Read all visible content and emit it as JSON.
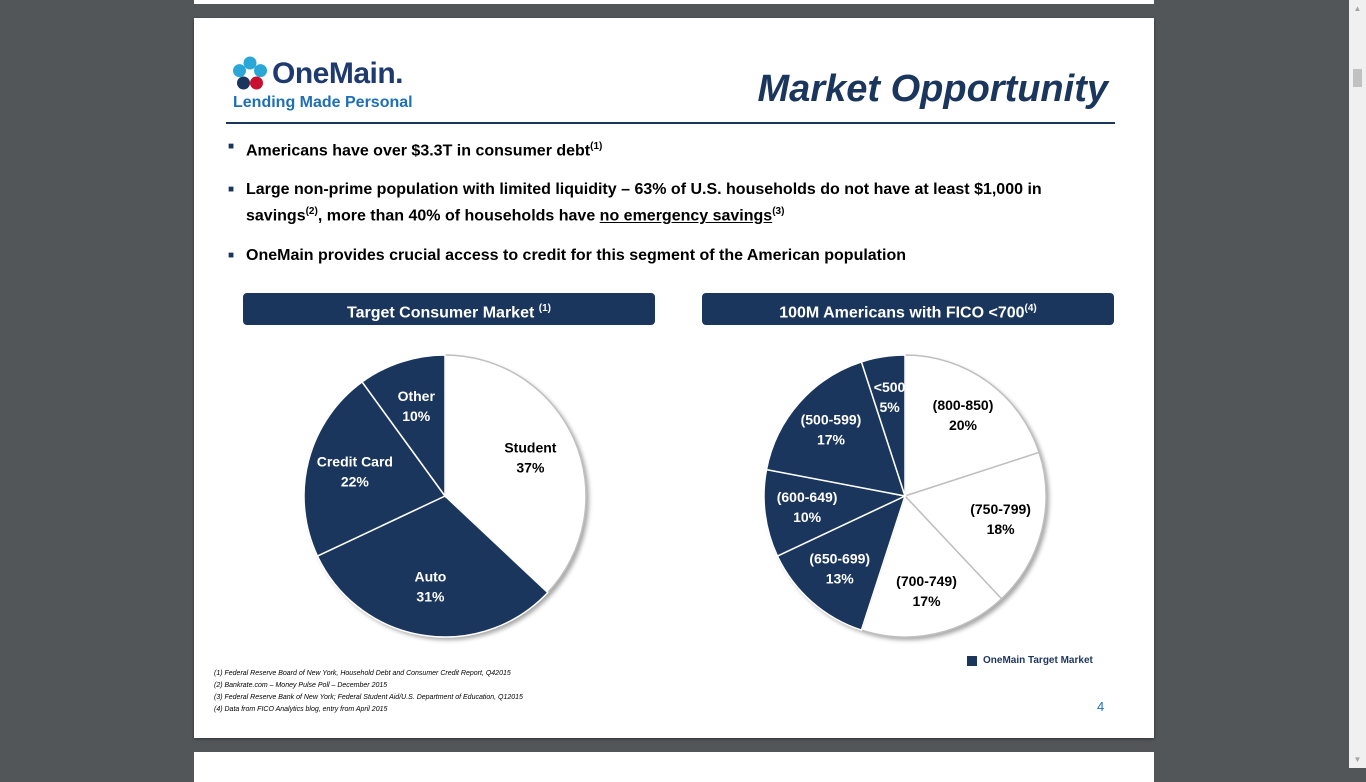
{
  "logo": {
    "name": "OneMain.",
    "tagline": "Lending Made Personal"
  },
  "slide": {
    "title": "Market  Opportunity",
    "page_number": "4",
    "bullets": [
      {
        "parts": [
          {
            "t": "Americans have over $3.3T in consumer debt"
          },
          {
            "t": "(1)",
            "sup": true
          }
        ]
      },
      {
        "parts": [
          {
            "t": "Large non-prime population with limited liquidity – 63% of U.S. households do not have at least $1,000 in savings"
          },
          {
            "t": "(2)",
            "sup": true
          },
          {
            "t": ", more than 40% of households have "
          },
          {
            "t": "no emergency savings",
            "u": true
          },
          {
            "t": "(3)",
            "sup": true
          }
        ]
      },
      {
        "parts": [
          {
            "t": "OneMain provides crucial access to credit for this segment of the American population"
          }
        ]
      }
    ],
    "chart_headers": {
      "left": {
        "text": "Target Consumer Market ",
        "sup": "(1)"
      },
      "right": {
        "text": "100M Americans with FICO <700",
        "sup": "(4)"
      }
    },
    "legend": "OneMain Target Market",
    "footnotes": [
      "(1) Federal Reserve Board of New York, Household Debt and Consumer Credit Report, Q42015",
      "(2) Bankrate.com – Money Pulse Poll – December 2015",
      "(3) Federal Reserve Bank of New York; Federal Student Aid/U.S. Department of Education, Q12015",
      "(4) Data from FICO Analytics blog, entry from April 2015"
    ]
  },
  "colors": {
    "navy": "#1b365d",
    "white": "#ffffff",
    "accent_blue": "#1e6fb8",
    "logo_teal": "#2aa7d6",
    "logo_red": "#c8102e"
  },
  "chart_data": [
    {
      "type": "pie",
      "title": "Target Consumer Market",
      "slices": [
        {
          "label": "Student",
          "value": 37,
          "display": "37%",
          "target": false
        },
        {
          "label": "Auto",
          "value": 31,
          "display": "31%",
          "target": true
        },
        {
          "label": "Credit Card",
          "value": 22,
          "display": "22%",
          "target": true
        },
        {
          "label": "Other",
          "value": 10,
          "display": "10%",
          "target": true
        }
      ]
    },
    {
      "type": "pie",
      "title": "100M Americans with FICO <700",
      "slices": [
        {
          "label": "(800-850)",
          "value": 20,
          "display": "20%",
          "target": false
        },
        {
          "label": "(750-799)",
          "value": 18,
          "display": "18%",
          "target": false
        },
        {
          "label": "(700-749)",
          "value": 17,
          "display": "17%",
          "target": false
        },
        {
          "label": "(650-699)",
          "value": 13,
          "display": "13%",
          "target": true
        },
        {
          "label": "(600-649)",
          "value": 10,
          "display": "10%",
          "target": true
        },
        {
          "label": "(500-599)",
          "value": 17,
          "display": "17%",
          "target": true
        },
        {
          "label": "<500",
          "value": 5,
          "display": "5%",
          "target": true
        }
      ]
    }
  ]
}
